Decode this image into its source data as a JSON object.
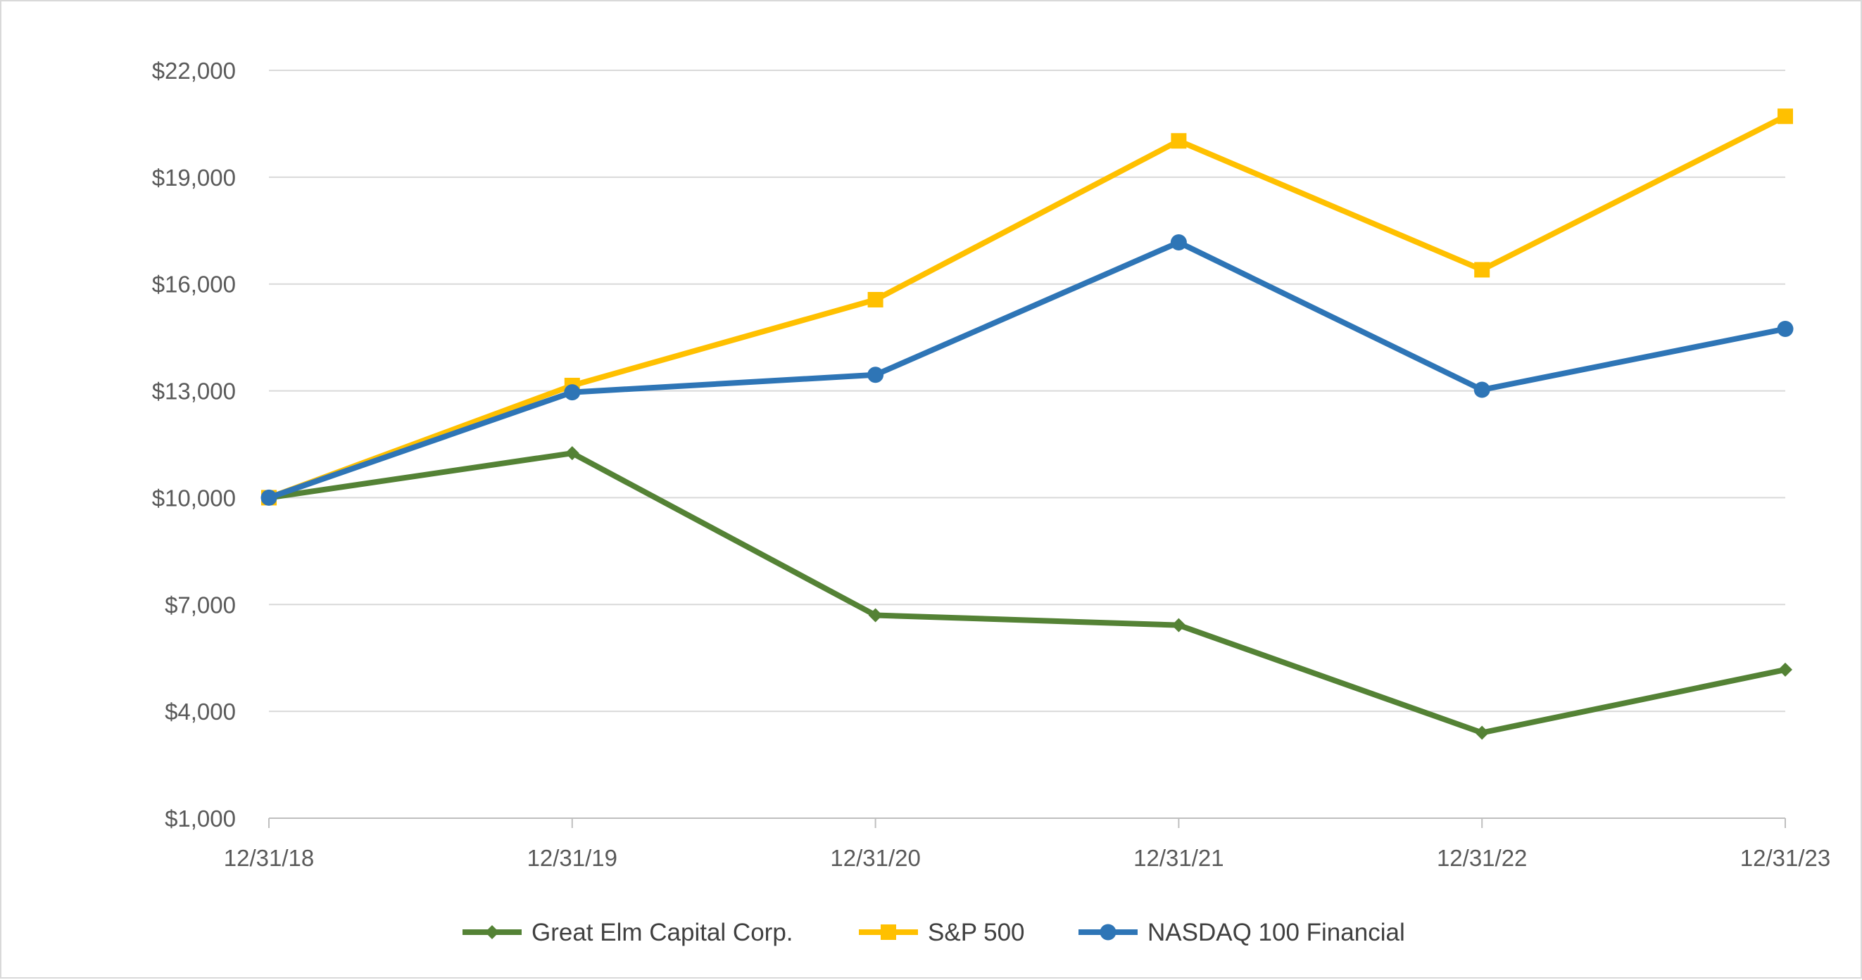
{
  "chart_data": {
    "type": "line",
    "title": "",
    "xlabel": "",
    "ylabel": "",
    "categories": [
      "12/31/18",
      "12/31/19",
      "12/31/20",
      "12/31/21",
      "12/31/22",
      "12/31/23"
    ],
    "y_ticks": [
      "$1,000",
      "$4,000",
      "$7,000",
      "$10,000",
      "$13,000",
      "$16,000",
      "$19,000",
      "$22,000"
    ],
    "y_tick_values": [
      1000,
      4000,
      7000,
      10000,
      13000,
      16000,
      19000,
      22000
    ],
    "ylim": [
      1000,
      22000
    ],
    "grid": true,
    "legend_position": "bottom",
    "series": [
      {
        "name": "Great Elm Capital Corp.",
        "values": [
          10000,
          11250,
          6700,
          6420,
          3400,
          5170
        ],
        "color": "#548235",
        "marker": "diamond"
      },
      {
        "name": "S&P 500",
        "values": [
          10000,
          13150,
          15560,
          20020,
          16400,
          20710
        ],
        "color": "#ffc000",
        "marker": "square"
      },
      {
        "name": "NASDAQ 100 Financial",
        "values": [
          10000,
          12960,
          13450,
          17170,
          13030,
          14740
        ],
        "color": "#2e75b6",
        "marker": "circle"
      }
    ]
  }
}
